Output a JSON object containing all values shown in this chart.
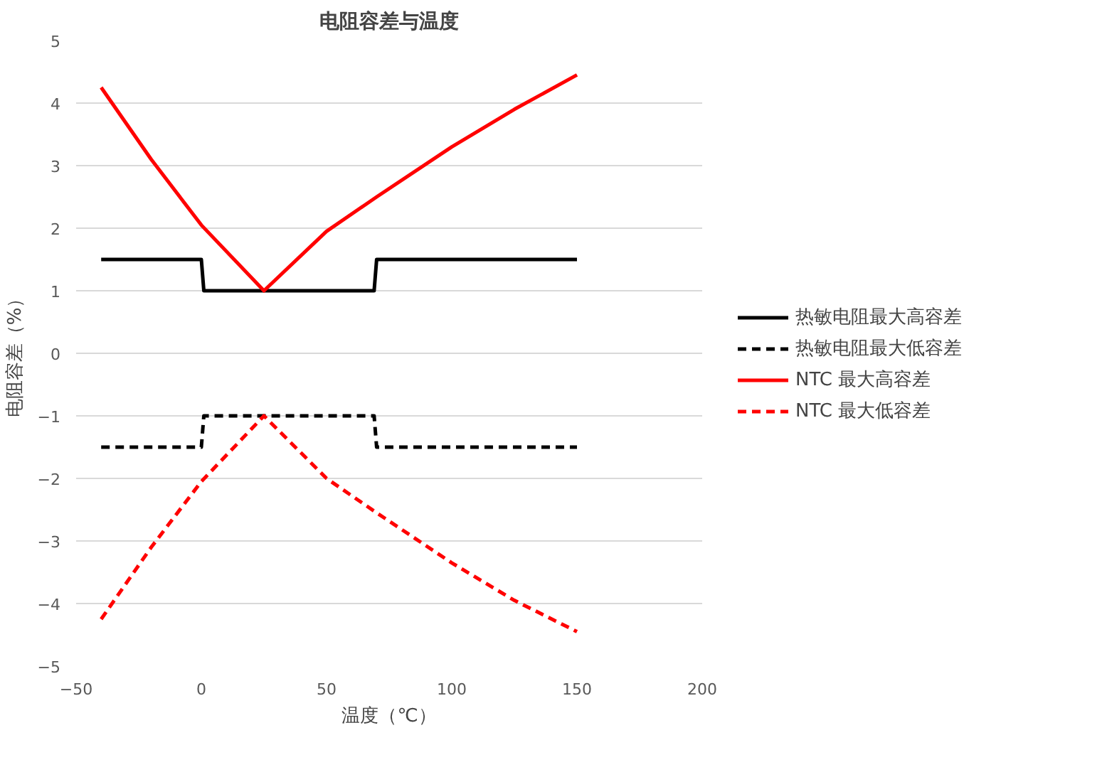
{
  "chart_data": {
    "type": "line",
    "title": "电阻容差与温度",
    "xlabel": "温度（℃）",
    "ylabel": "电阻容差（%）",
    "xlim": [
      -50,
      200
    ],
    "xticks": [
      -50,
      0,
      50,
      100,
      150,
      200
    ],
    "ylim": [
      -5,
      5
    ],
    "yticks": [
      -5,
      -4,
      -3,
      -2,
      -1,
      0,
      1,
      2,
      3,
      4,
      5
    ],
    "grid": "y",
    "legend": "right",
    "marker": "none",
    "series": [
      {
        "name": "热敏电阻最大高容差",
        "color": "#000000",
        "line_style": "solid",
        "x": [
          -40,
          0,
          1,
          69,
          70,
          150
        ],
        "values": [
          1.5,
          1.5,
          1,
          1,
          1.5,
          1.5
        ]
      },
      {
        "name": "热敏电阻最大低容差",
        "color": "#000000",
        "line_style": "dashed",
        "x": [
          -40,
          0,
          1,
          69,
          70,
          150
        ],
        "values": [
          -1.5,
          -1.5,
          -1,
          -1,
          -1.5,
          -1.5
        ]
      },
      {
        "name": "NTC 最大高容差",
        "color": "#ff0000",
        "line_style": "solid",
        "x": [
          -40,
          -20,
          0,
          25,
          50,
          70,
          100,
          125,
          150
        ],
        "values": [
          4.25,
          3.1,
          2.05,
          1.0,
          1.95,
          2.5,
          3.3,
          3.9,
          4.45
        ]
      },
      {
        "name": "NTC 最大低容差",
        "color": "#ff0000",
        "line_style": "dashed",
        "x": [
          -40,
          -20,
          0,
          25,
          50,
          70,
          100,
          125,
          150
        ],
        "values": [
          -4.25,
          -3.1,
          -2.05,
          -1.0,
          -2.0,
          -2.55,
          -3.35,
          -3.95,
          -4.45
        ]
      }
    ]
  }
}
